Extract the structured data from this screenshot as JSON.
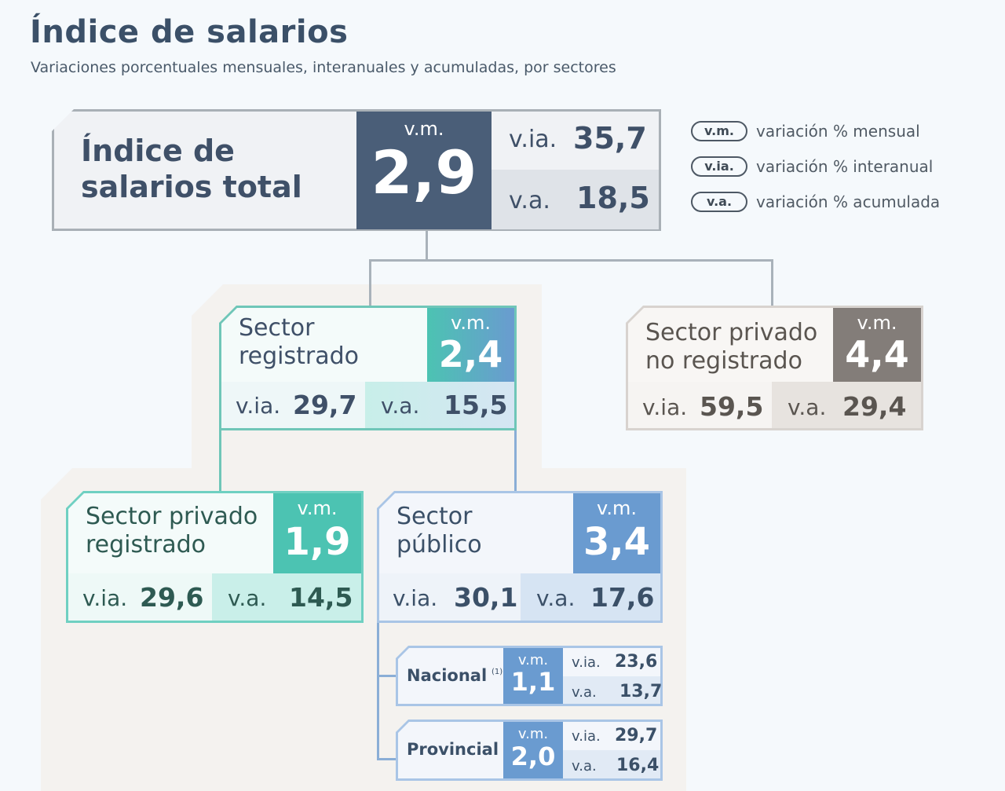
{
  "header": {
    "title": "Índice de salarios",
    "subtitle": "Variaciones porcentuales mensuales, interanuales y acumuladas, por sectores"
  },
  "legend": [
    {
      "tag": "v.m.",
      "text": "variación % mensual"
    },
    {
      "tag": "v.ia.",
      "text": "variación % interanual"
    },
    {
      "tag": "v.a.",
      "text": "variación % acumulada"
    }
  ],
  "labels": {
    "vm": "v.m.",
    "via": "v.ia.",
    "va": "v.a."
  },
  "total": {
    "name_line1": "Índice de",
    "name_line2": "salarios total",
    "vm": "2,9",
    "via": "35,7",
    "va": "18,5"
  },
  "registrado": {
    "name_line1": "Sector",
    "name_line2": "registrado",
    "vm": "2,4",
    "via": "29,7",
    "va": "15,5"
  },
  "no_registrado": {
    "name_line1": "Sector privado",
    "name_line2": "no registrado",
    "vm": "4,4",
    "via": "59,5",
    "va": "29,4"
  },
  "privado_registrado": {
    "name_line1": "Sector privado",
    "name_line2": "registrado",
    "vm": "1,9",
    "via": "29,6",
    "va": "14,5"
  },
  "publico": {
    "name_line1": "Sector",
    "name_line2": "público",
    "vm": "3,4",
    "via": "30,1",
    "va": "17,6"
  },
  "nacional": {
    "name": "Nacional",
    "note": "(1)",
    "vm": "1,1",
    "via": "23,6",
    "va": "13,7"
  },
  "provincial": {
    "name": "Provincial",
    "vm": "2,0",
    "via": "29,7",
    "va": "16,4"
  },
  "colors": {
    "dark_navy": "#4a5e78",
    "teal": "#4cc3b2",
    "blue": "#6a9bd0",
    "gray_brown": "#837d79"
  }
}
